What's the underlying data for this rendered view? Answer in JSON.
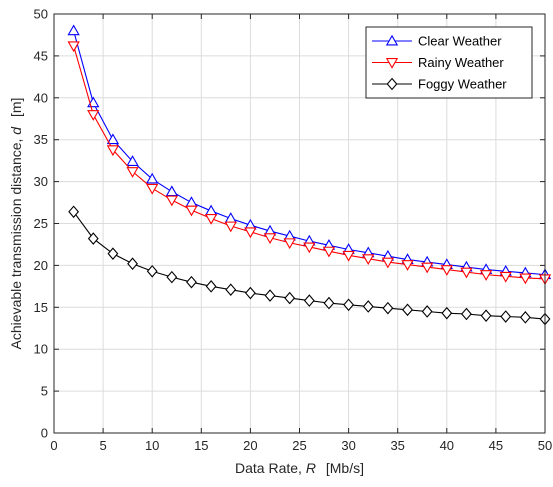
{
  "chart_data": {
    "type": "line",
    "xlabel": {
      "prefix": "Data Rate,",
      "var": "R",
      "unit": "[Mb/s]"
    },
    "ylabel": {
      "prefix": "Achievable transmission distance,",
      "var": "d",
      "unit": "[m]"
    },
    "xlim": [
      0,
      50
    ],
    "ylim": [
      0,
      50
    ],
    "xticks": [
      0,
      5,
      10,
      15,
      20,
      25,
      30,
      35,
      40,
      45,
      50
    ],
    "yticks": [
      0,
      5,
      10,
      15,
      20,
      25,
      30,
      35,
      40,
      45,
      50
    ],
    "grid": true,
    "legend_position": "top-right",
    "x": [
      2,
      4,
      6,
      8,
      10,
      12,
      14,
      16,
      18,
      20,
      22,
      24,
      26,
      28,
      30,
      32,
      34,
      36,
      38,
      40,
      42,
      44,
      46,
      48,
      50
    ],
    "series": [
      {
        "name": "Clear Weather",
        "color": "#0000ff",
        "marker": "triangle-up",
        "values": [
          48.0,
          39.4,
          35.0,
          32.4,
          30.3,
          28.8,
          27.5,
          26.5,
          25.6,
          24.8,
          24.1,
          23.5,
          22.9,
          22.4,
          21.9,
          21.5,
          21.1,
          20.7,
          20.4,
          20.1,
          19.8,
          19.5,
          19.3,
          19.1,
          18.9
        ]
      },
      {
        "name": "Rainy Weather",
        "color": "#ff0000",
        "marker": "triangle-down",
        "values": [
          46.2,
          38.0,
          33.8,
          31.2,
          29.2,
          27.8,
          26.6,
          25.6,
          24.7,
          24.0,
          23.3,
          22.7,
          22.2,
          21.7,
          21.2,
          20.8,
          20.4,
          20.1,
          19.8,
          19.5,
          19.2,
          18.9,
          18.7,
          18.5,
          18.4
        ]
      },
      {
        "name": "Foggy Weather",
        "color": "#000000",
        "marker": "diamond",
        "values": [
          26.4,
          23.2,
          21.4,
          20.2,
          19.3,
          18.6,
          18.0,
          17.5,
          17.1,
          16.7,
          16.4,
          16.1,
          15.8,
          15.5,
          15.3,
          15.1,
          14.9,
          14.7,
          14.5,
          14.3,
          14.2,
          14.0,
          13.9,
          13.8,
          13.6
        ]
      }
    ]
  }
}
